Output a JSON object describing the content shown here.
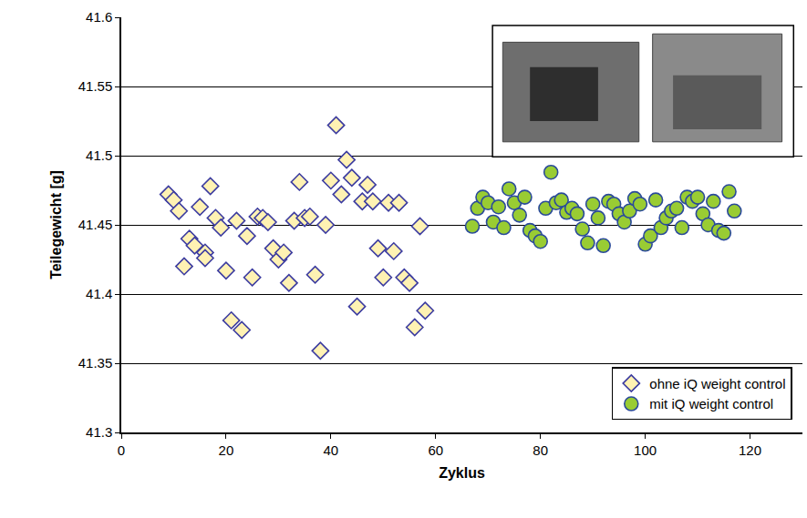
{
  "chart_data": {
    "type": "scatter",
    "x_label": "Zyklus",
    "y_label": "Teilegewicht [g]",
    "xlim": [
      0,
      130
    ],
    "xticks": [
      0,
      20,
      40,
      60,
      80,
      100,
      120
    ],
    "ylim": [
      41.3,
      41.6
    ],
    "yticks": [
      41.3,
      41.35,
      41.4,
      41.45,
      41.5,
      41.55,
      41.6
    ],
    "grid": true,
    "legend": "lower right",
    "series": [
      {
        "name": "ohne iQ weight control",
        "color": "#fff2b3",
        "marker": "diamond",
        "x": [
          9,
          10,
          11,
          12,
          13,
          14,
          15,
          16,
          16,
          17,
          18,
          19,
          20,
          21,
          22,
          23,
          24,
          25,
          26,
          27,
          28,
          29,
          30,
          31,
          32,
          33,
          34,
          35,
          36,
          37,
          38,
          39,
          40,
          41,
          42,
          43,
          44,
          45,
          46,
          47,
          48,
          49,
          50,
          51,
          52,
          53,
          54,
          55,
          56,
          57,
          58
        ],
        "values": [
          41.472,
          41.468,
          41.46,
          41.42,
          41.44,
          41.435,
          41.463,
          41.43,
          41.426,
          41.478,
          41.455,
          41.448,
          41.417,
          41.381,
          41.453,
          41.374,
          41.442,
          41.412,
          41.456,
          41.455,
          41.452,
          41.433,
          41.425,
          41.43,
          41.408,
          41.453,
          41.481,
          41.455,
          41.456,
          41.414,
          41.359,
          41.45,
          41.482,
          41.522,
          41.472,
          41.497,
          41.484,
          41.391,
          41.467,
          41.479,
          41.467,
          41.433,
          41.412,
          41.466,
          41.431,
          41.466,
          41.412,
          41.408,
          41.376,
          41.449,
          41.388
        ]
      },
      {
        "name": "mit iQ weight control",
        "color": "#99cc33",
        "marker": "circle",
        "x": [
          67,
          68,
          69,
          70,
          71,
          72,
          73,
          74,
          75,
          76,
          77,
          78,
          79,
          80,
          81,
          82,
          83,
          84,
          85,
          86,
          87,
          88,
          89,
          90,
          91,
          92,
          93,
          94,
          95,
          96,
          97,
          98,
          99,
          100,
          101,
          102,
          103,
          104,
          105,
          106,
          107,
          108,
          109,
          110,
          111,
          112,
          113,
          114,
          115,
          116,
          117
        ],
        "values": [
          41.449,
          41.462,
          41.47,
          41.466,
          41.452,
          41.463,
          41.448,
          41.476,
          41.466,
          41.457,
          41.47,
          41.446,
          41.442,
          41.438,
          41.462,
          41.488,
          41.466,
          41.468,
          41.459,
          41.462,
          41.458,
          41.447,
          41.437,
          41.465,
          41.455,
          41.435,
          41.467,
          41.465,
          41.458,
          41.452,
          41.46,
          41.469,
          41.465,
          41.436,
          41.442,
          41.468,
          41.448,
          41.455,
          41.46,
          41.462,
          41.448,
          41.47,
          41.467,
          41.47,
          41.458,
          41.45,
          41.467,
          41.446,
          41.444,
          41.474,
          41.46
        ]
      }
    ]
  }
}
